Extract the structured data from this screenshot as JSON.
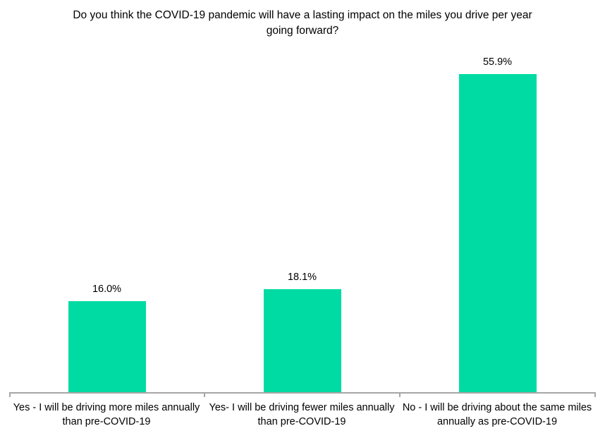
{
  "chart_data": {
    "type": "bar",
    "title": "Do you think the COVID-19 pandemic will have a lasting impact on the miles you drive per year going forward?",
    "categories": [
      "Yes - I will be driving more miles annually than pre-COVID-19",
      "Yes- I will be driving fewer miles annually than pre-COVID-19",
      "No - I will be driving about the same miles annually as pre-COVID-19"
    ],
    "values": [
      16.0,
      18.1,
      55.9
    ],
    "value_labels": [
      "16.0%",
      "18.1%",
      "55.9%"
    ],
    "unit": "percent",
    "ylim": [
      0,
      60
    ],
    "xlabel": "",
    "ylabel": "",
    "grid": false,
    "legend": false,
    "bar_color": "#00DBA3",
    "axis_color": "#A6A6A6",
    "text_color": "#000000",
    "background_color": "#FFFFFF"
  }
}
